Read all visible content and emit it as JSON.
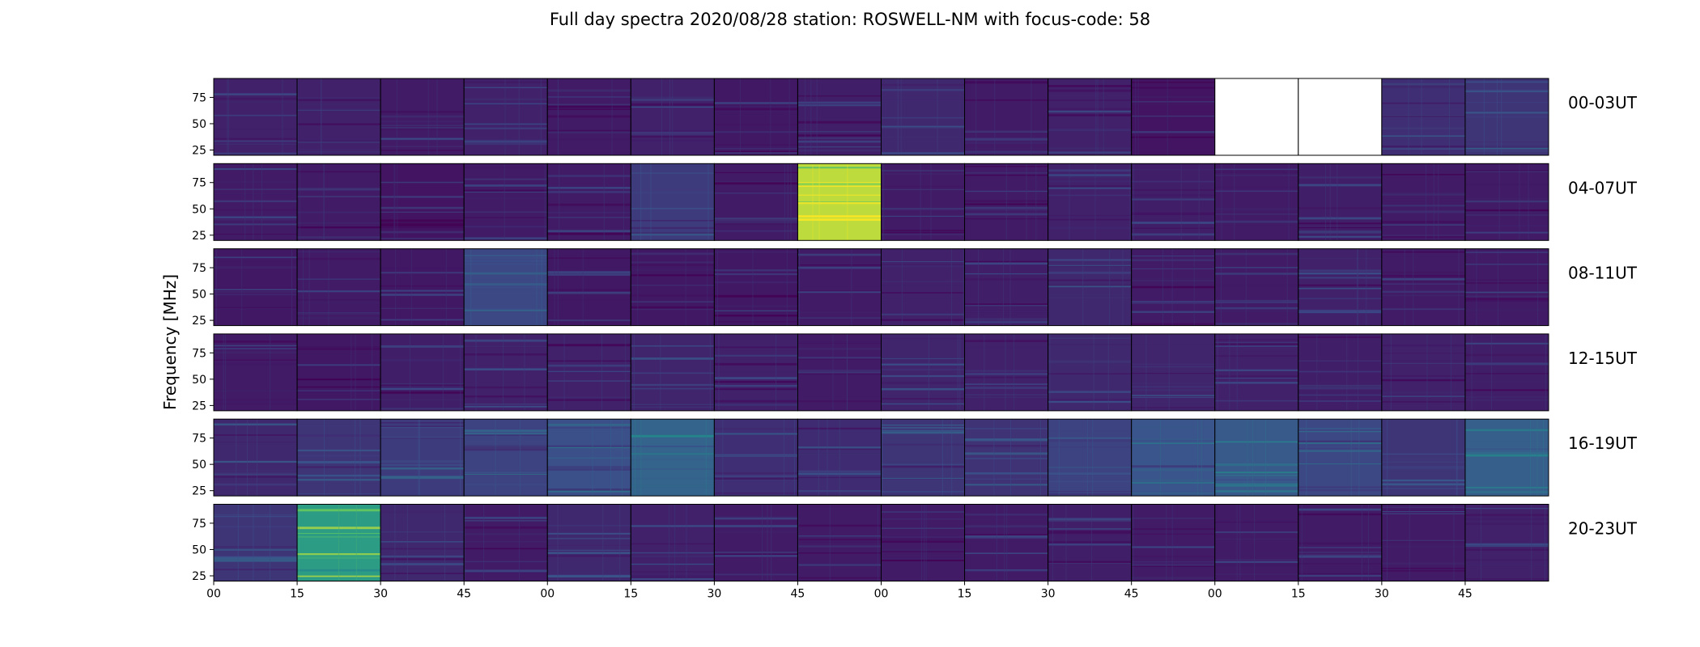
{
  "chart_data": {
    "type": "heatmap",
    "title": "Full day spectra 2020/08/28 station: ROSWELL-NM with focus-code: 58",
    "ylabel": "Frequency [MHz]",
    "xlabel": "",
    "colormap": "viridis",
    "y_range": [
      20,
      93
    ],
    "y_ticks": [
      25,
      50,
      75
    ],
    "x_tick_labels": [
      "00",
      "15",
      "30",
      "45",
      "00",
      "15",
      "30",
      "45",
      "00",
      "15",
      "30",
      "45",
      "00",
      "15",
      "30",
      "45"
    ],
    "rows": [
      {
        "label": "00-03UT",
        "panels": [
          0.1,
          0.1,
          0.08,
          0.1,
          0.08,
          0.1,
          0.07,
          0.09,
          0.12,
          0.08,
          0.1,
          0.06,
          null,
          null,
          0.14,
          0.16
        ]
      },
      {
        "label": "04-07UT",
        "panels": [
          0.08,
          0.08,
          0.06,
          0.08,
          0.08,
          0.18,
          0.08,
          0.9,
          0.08,
          0.08,
          0.1,
          0.09,
          0.08,
          0.09,
          0.08,
          0.08
        ]
      },
      {
        "label": "08-11UT",
        "panels": [
          0.07,
          0.08,
          0.07,
          0.22,
          0.07,
          0.07,
          0.07,
          0.08,
          0.1,
          0.09,
          0.12,
          0.08,
          0.08,
          0.1,
          0.08,
          0.08
        ]
      },
      {
        "label": "12-15UT",
        "panels": [
          0.08,
          0.07,
          0.09,
          0.1,
          0.1,
          0.11,
          0.1,
          0.08,
          0.11,
          0.1,
          0.12,
          0.11,
          0.1,
          0.09,
          0.1,
          0.09
        ]
      },
      {
        "label": "16-19UT",
        "panels": [
          0.12,
          0.16,
          0.18,
          0.2,
          0.24,
          0.32,
          0.14,
          0.13,
          0.16,
          0.15,
          0.2,
          0.26,
          0.28,
          0.22,
          0.16,
          0.3
        ]
      },
      {
        "label": "20-23UT",
        "panels": [
          0.16,
          0.55,
          0.12,
          0.08,
          0.12,
          0.1,
          0.08,
          0.08,
          0.08,
          0.08,
          0.09,
          0.08,
          0.08,
          0.08,
          0.08,
          0.1
        ]
      }
    ],
    "grid": false,
    "legend": "none"
  }
}
